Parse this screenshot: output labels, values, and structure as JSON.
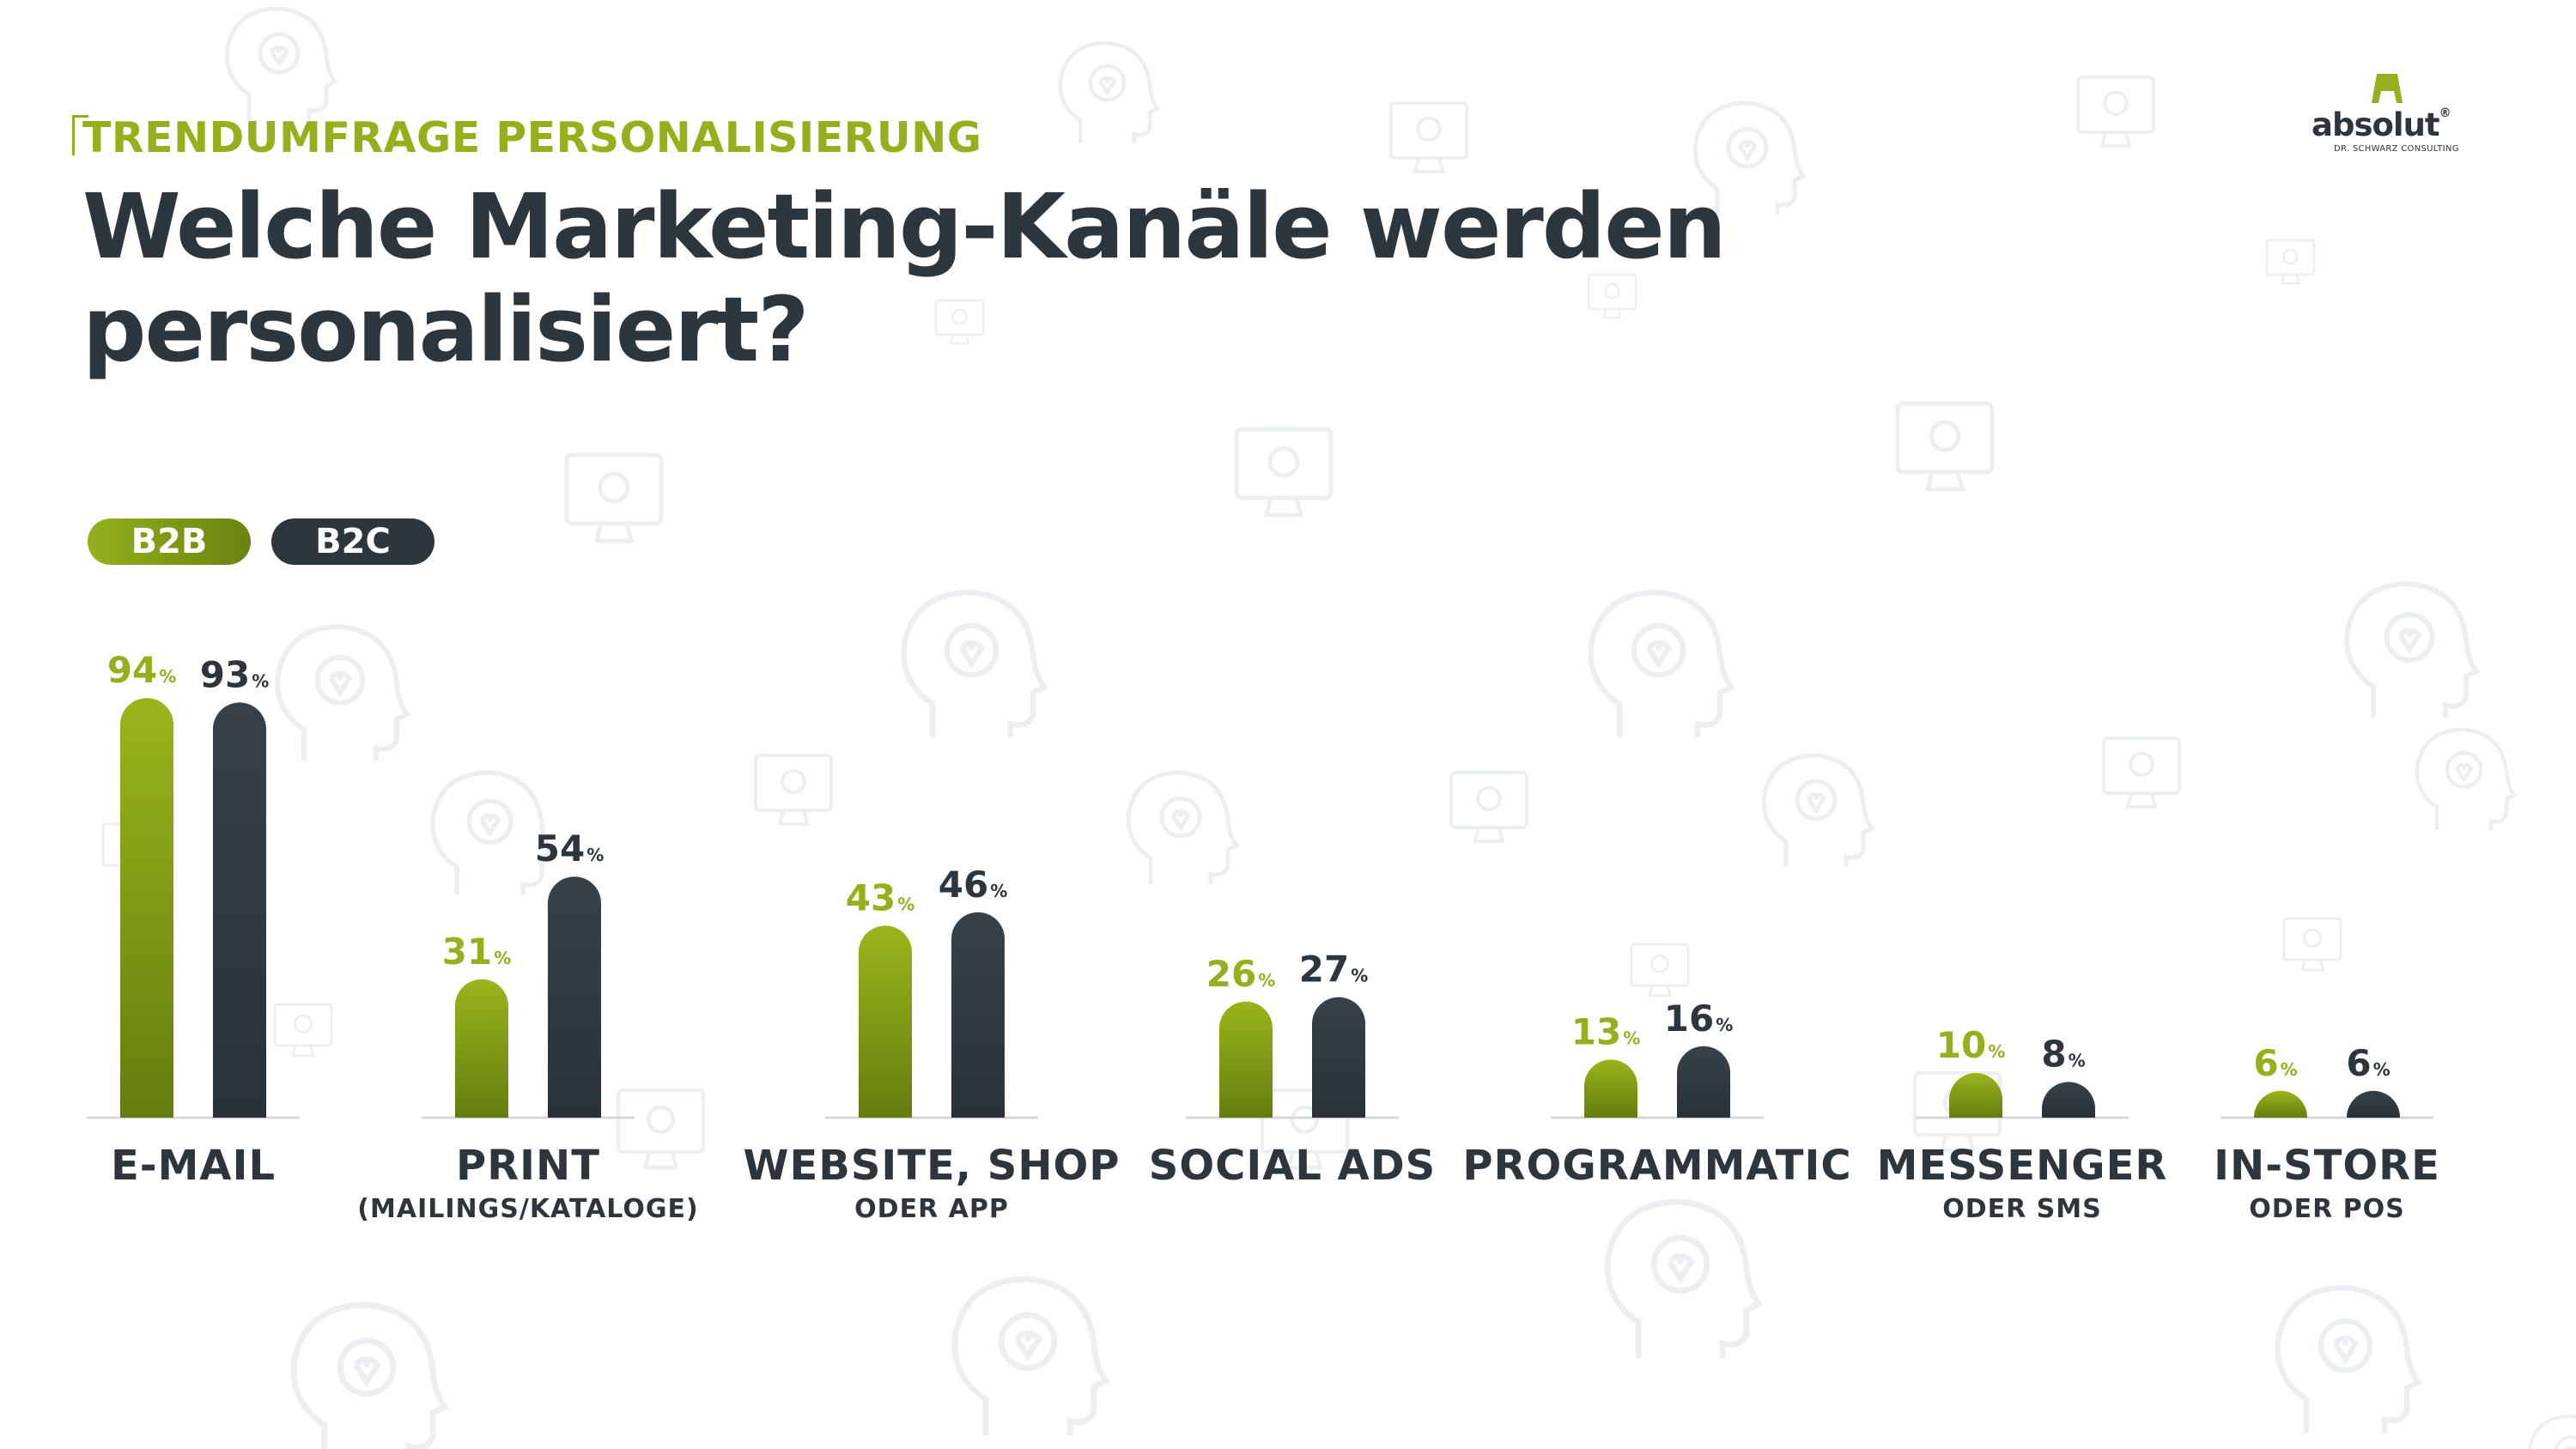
{
  "header": {
    "eyebrow": "TRENDUMFRAGE PERSONALISIERUNG",
    "title_line1": "Welche Marketing-Kanäle werden",
    "title_line2": "personalisiert?"
  },
  "logo": {
    "word": "absolut",
    "reg": "®",
    "sub": "DR. SCHWARZ CONSULTING"
  },
  "colors": {
    "b2b": "#95b01c",
    "b2b_dark": "#6a8310",
    "b2c": "#2e363d",
    "baseline": "#d4d8dc",
    "deco": "#eceff1"
  },
  "chart_data": {
    "type": "bar",
    "categories": [
      {
        "label": "E-Mail",
        "sub": ""
      },
      {
        "label": "Print",
        "sub": "(Mailings/Kataloge)"
      },
      {
        "label": "Website, Shop",
        "sub": "oder App"
      },
      {
        "label": "Social Ads",
        "sub": ""
      },
      {
        "label": "Programmatic",
        "sub": ""
      },
      {
        "label": "Messenger",
        "sub": "oder SMS"
      },
      {
        "label": "In-Store",
        "sub": "oder POS"
      }
    ],
    "series": [
      {
        "name": "B2B",
        "values": [
          94,
          31,
          43,
          26,
          13,
          10,
          6
        ]
      },
      {
        "name": "B2C",
        "values": [
          93,
          54,
          46,
          27,
          16,
          8,
          6
        ]
      }
    ],
    "unit": "%",
    "ylim": [
      0,
      100
    ]
  }
}
